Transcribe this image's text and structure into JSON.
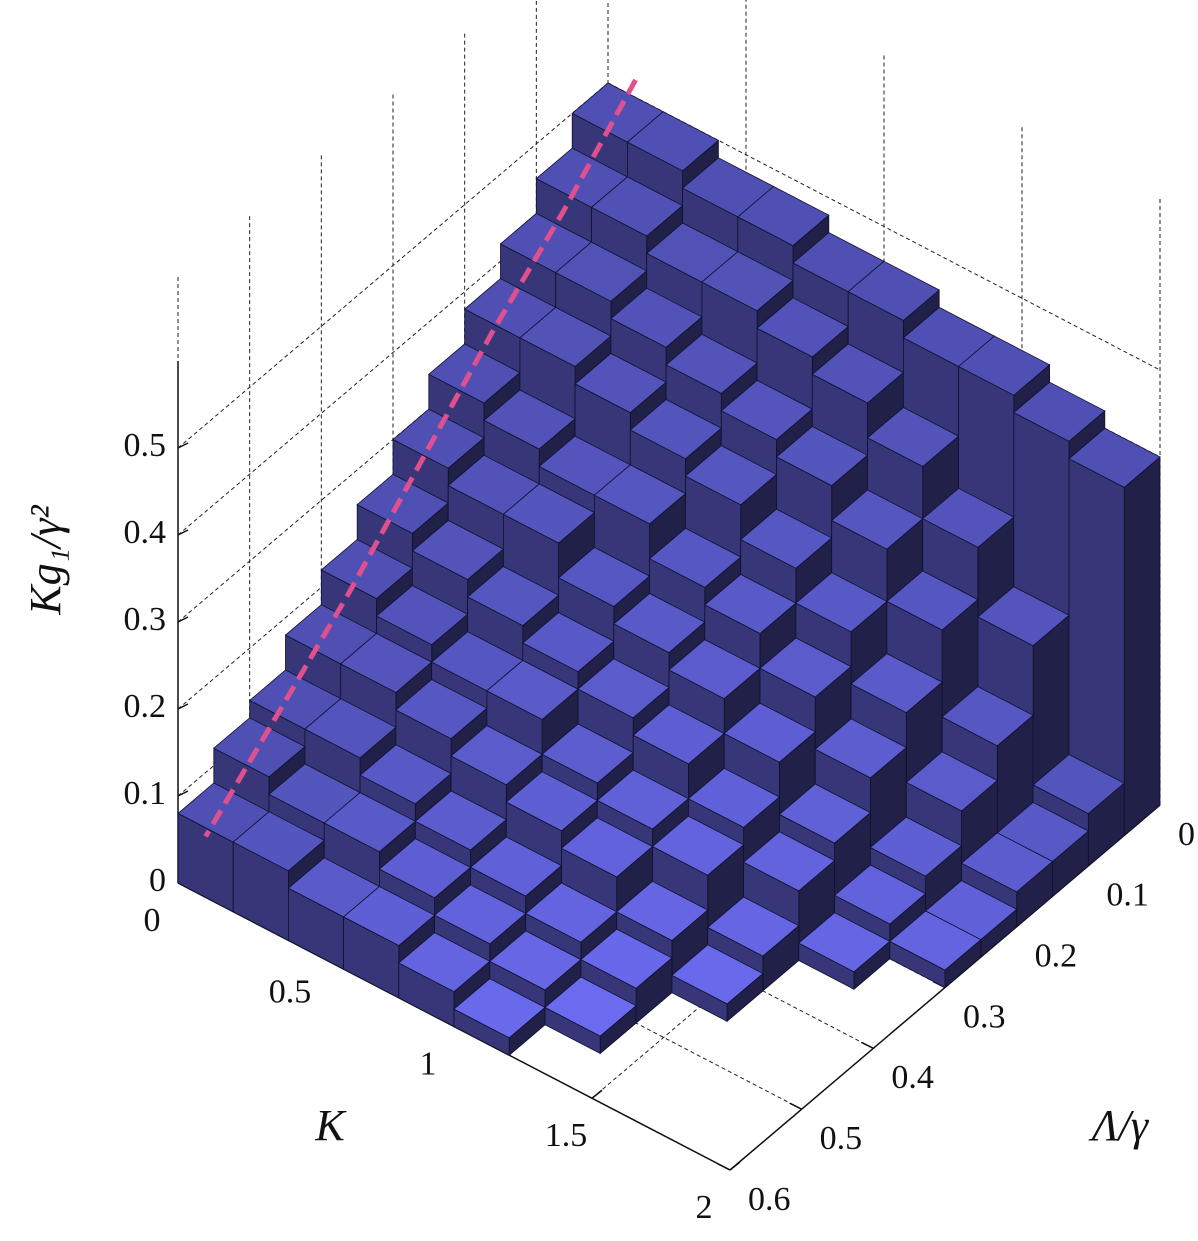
{
  "chart_data": {
    "type": "voxel3d",
    "xlabel": "K",
    "ylabel": "Λ/γ",
    "zlabel": "Kg₁/γ²",
    "xlim": [
      0,
      2
    ],
    "xticks": [
      0,
      0.5,
      1,
      1.5,
      2
    ],
    "ylim": [
      0,
      0.6
    ],
    "yticks": [
      0,
      0.1,
      0.2,
      0.3,
      0.4,
      0.5,
      0.6
    ],
    "zlim": [
      0,
      0.6
    ],
    "zticks": [
      0,
      0.1,
      0.2,
      0.3,
      0.4,
      0.5
    ],
    "x_edges": [
      0,
      0.2,
      0.4,
      0.6,
      0.8,
      1.0,
      1.2,
      1.4,
      1.6,
      1.8,
      2.0
    ],
    "y_edges": [
      0,
      0.05,
      0.1,
      0.15,
      0.2,
      0.25,
      0.3,
      0.35,
      0.4,
      0.45,
      0.5,
      0.55,
      0.6
    ],
    "heights": [
      [
        0.5,
        0.46,
        0.42,
        0.38,
        0.34,
        0.3,
        0.26,
        0.22,
        0.18,
        0.14,
        0.12,
        0.08
      ],
      [
        0.5,
        0.46,
        0.42,
        0.38,
        0.32,
        0.28,
        0.24,
        0.2,
        0.18,
        0.14,
        0.1,
        0.08
      ],
      [
        0.48,
        0.44,
        0.4,
        0.36,
        0.3,
        0.28,
        0.22,
        0.18,
        0.16,
        0.12,
        0.1,
        0.06
      ],
      [
        0.48,
        0.44,
        0.38,
        0.34,
        0.3,
        0.24,
        0.2,
        0.18,
        0.14,
        0.1,
        0.08,
        0.06
      ],
      [
        0.46,
        0.42,
        0.36,
        0.32,
        0.26,
        0.22,
        0.18,
        0.14,
        0.12,
        0.08,
        0.06,
        0.04
      ],
      [
        0.46,
        0.4,
        0.34,
        0.28,
        0.24,
        0.2,
        0.16,
        0.12,
        0.1,
        0.06,
        0.04,
        0.02
      ],
      [
        0.44,
        0.36,
        0.3,
        0.24,
        0.2,
        0.16,
        0.12,
        0.1,
        0.06,
        0.04,
        0.02,
        0
      ],
      [
        0.44,
        0.3,
        0.24,
        0.18,
        0.14,
        0.1,
        0.08,
        0.04,
        0.02,
        0,
        0,
        0
      ],
      [
        0.42,
        0.22,
        0.14,
        0.1,
        0.06,
        0.04,
        0.02,
        0,
        0,
        0,
        0,
        0
      ],
      [
        0.4,
        0.06,
        0.04,
        0.04,
        0.02,
        0.02,
        0,
        0,
        0,
        0,
        0,
        0
      ]
    ],
    "color": "#6b6bf0",
    "boundary": {
      "color": "#e0508f",
      "x": 0.1,
      "y": [
        0,
        0.1,
        0.2,
        0.3,
        0.4,
        0.5,
        0.6
      ],
      "values": [
        0.52,
        0.44,
        0.37,
        0.29,
        0.21,
        0.14,
        0.07
      ]
    },
    "grid": true
  }
}
